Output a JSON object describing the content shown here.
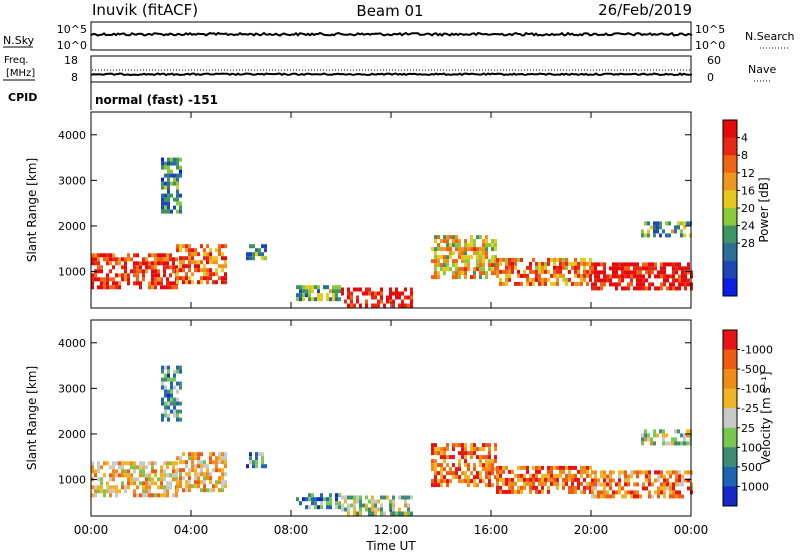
{
  "header": {
    "station": "Inuvik (fitACF)",
    "beam": "Beam 01",
    "date": "26/Feb/2019"
  },
  "panels": {
    "nsky": {
      "label": "N.Sky",
      "left_ticks": [
        "10^5",
        "10^0"
      ],
      "right_ticks": [
        "10^5",
        "10^0"
      ],
      "right_label": "N.Search"
    },
    "freq": {
      "label_line1": "Freq.",
      "label_line2": "[MHz]",
      "left_ticks": [
        "18",
        "8"
      ],
      "right_ticks": [
        "60",
        "0"
      ],
      "right_label": "Nave"
    },
    "cpid": {
      "label": "CPID",
      "value": "normal (fast) -151"
    }
  },
  "chart_data": [
    {
      "type": "heatmap",
      "title": "",
      "xlabel": "Time UT",
      "ylabel": "Slant Range [km]",
      "x_ticks": [
        "00:00",
        "04:00",
        "08:00",
        "12:00",
        "16:00",
        "20:00",
        "00:00"
      ],
      "x_hours": [
        0,
        4,
        8,
        12,
        16,
        20,
        24
      ],
      "y_ticks": [
        1000,
        2000,
        3000,
        4000
      ],
      "ylim": [
        200,
        4500
      ],
      "colorbar": {
        "label": "Power [dB]",
        "ticks": [
          "4",
          "8",
          "12",
          "16",
          "20",
          "24",
          "28"
        ],
        "colors": [
          "#0a1ee6",
          "#1e46b4",
          "#2d6e96",
          "#3c9664",
          "#8cc83c",
          "#e6c81e",
          "#f0961e",
          "#f06414",
          "#e62814",
          "#e60a0a"
        ]
      },
      "regions": [
        {
          "name": "main-band",
          "t0": 0.0,
          "t1": 3.4,
          "r0": 650,
          "r1": 1400,
          "level": 0.85
        },
        {
          "name": "band-0400",
          "t0": 3.4,
          "t1": 5.4,
          "r0": 800,
          "r1": 1600,
          "level": 0.75
        },
        {
          "name": "band-0630",
          "t0": 6.2,
          "t1": 7.0,
          "r0": 1300,
          "r1": 1600,
          "level": 0.35
        },
        {
          "name": "band-night",
          "t0": 8.2,
          "t1": 10.0,
          "r0": 350,
          "r1": 700,
          "level": 0.4
        },
        {
          "name": "band-1000",
          "t0": 10.0,
          "t1": 12.8,
          "r0": 250,
          "r1": 650,
          "level": 0.95
        },
        {
          "name": "band-1400",
          "t0": 13.6,
          "t1": 16.2,
          "r0": 900,
          "r1": 1800,
          "level": 0.6
        },
        {
          "name": "band-1630",
          "t0": 16.2,
          "t1": 20.0,
          "r0": 750,
          "r1": 1300,
          "level": 0.7
        },
        {
          "name": "band-2000",
          "t0": 20.0,
          "t1": 24.0,
          "r0": 650,
          "r1": 1200,
          "level": 0.95
        },
        {
          "name": "patch-0330",
          "t0": 2.8,
          "t1": 3.6,
          "r0": 2300,
          "r1": 3500,
          "level": 0.3
        },
        {
          "name": "patch-2200",
          "t0": 22.0,
          "t1": 24.0,
          "r0": 1800,
          "r1": 2100,
          "level": 0.4
        }
      ]
    },
    {
      "type": "heatmap",
      "title": "",
      "xlabel": "Time UT",
      "ylabel": "Slant Range [km]",
      "x_ticks": [
        "00:00",
        "04:00",
        "08:00",
        "12:00",
        "16:00",
        "20:00",
        "00:00"
      ],
      "x_hours": [
        0,
        4,
        8,
        12,
        16,
        20,
        24
      ],
      "y_ticks": [
        1000,
        2000,
        3000,
        4000
      ],
      "ylim": [
        200,
        4500
      ],
      "colorbar": {
        "label": "Velocity [m s⁻¹]",
        "ticks": [
          "1000",
          "500",
          "100",
          "25",
          "-25",
          "-100",
          "-500",
          "-1000"
        ],
        "colors": [
          "#1428c8",
          "#1e64b4",
          "#3c8c78",
          "#78c850",
          "#c8c8c8",
          "#f0b428",
          "#f08c14",
          "#f05a14",
          "#e61414"
        ]
      },
      "regions": [
        {
          "name": "main-band",
          "t0": 0.0,
          "t1": 3.4,
          "r0": 650,
          "r1": 1400,
          "level": 0.6
        },
        {
          "name": "band-0400",
          "t0": 3.4,
          "t1": 5.4,
          "r0": 800,
          "r1": 1600,
          "level": 0.65
        },
        {
          "name": "band-0630",
          "t0": 6.2,
          "t1": 7.0,
          "r0": 1300,
          "r1": 1600,
          "level": 0.3
        },
        {
          "name": "band-night",
          "t0": 8.2,
          "t1": 10.0,
          "r0": 350,
          "r1": 700,
          "level": 0.25
        },
        {
          "name": "band-1000",
          "t0": 10.0,
          "t1": 12.8,
          "r0": 250,
          "r1": 650,
          "level": 0.45
        },
        {
          "name": "band-1400",
          "t0": 13.6,
          "t1": 16.2,
          "r0": 900,
          "r1": 1800,
          "level": 0.8
        },
        {
          "name": "band-1630",
          "t0": 16.2,
          "t1": 20.0,
          "r0": 750,
          "r1": 1300,
          "level": 0.8
        },
        {
          "name": "band-2000",
          "t0": 20.0,
          "t1": 24.0,
          "r0": 650,
          "r1": 1200,
          "level": 0.75
        },
        {
          "name": "patch-0330",
          "t0": 2.8,
          "t1": 3.6,
          "r0": 2300,
          "r1": 3500,
          "level": 0.3
        },
        {
          "name": "patch-2200",
          "t0": 22.0,
          "t1": 24.0,
          "r0": 1800,
          "r1": 2100,
          "level": 0.5
        }
      ]
    }
  ]
}
